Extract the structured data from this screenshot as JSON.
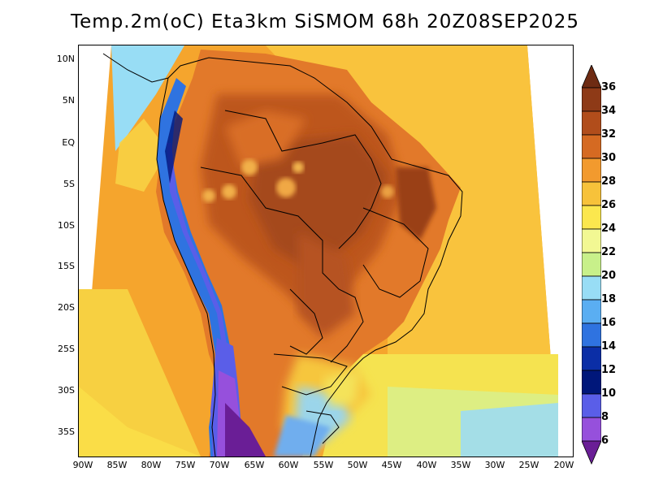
{
  "title": "Temp.2m(oC) Eta3km SiSMOM 68h 20Z08SEP2025",
  "map": {
    "lat_ticks": [
      "10N",
      "5N",
      "EQ",
      "5S",
      "10S",
      "15S",
      "20S",
      "25S",
      "30S",
      "35S"
    ],
    "lon_ticks": [
      "90W",
      "85W",
      "80W",
      "75W",
      "70W",
      "65W",
      "60W",
      "55W",
      "50W",
      "45W",
      "40W",
      "35W",
      "30W",
      "25W",
      "20W"
    ],
    "variable": "2 m air temperature",
    "units": "oC"
  },
  "colorbar": {
    "labels": [
      "36",
      "34",
      "32",
      "30",
      "28",
      "26",
      "24",
      "22",
      "20",
      "18",
      "16",
      "14",
      "12",
      "10",
      "8",
      "6"
    ],
    "colors": [
      "#6e2b13",
      "#8e3a17",
      "#b14d1b",
      "#d56a22",
      "#f29a2e",
      "#f7c23a",
      "#fbe74e",
      "#f2f893",
      "#c8f08a",
      "#98ddf5",
      "#5aaef2",
      "#2f73e0",
      "#0b2ea6",
      "#00177a",
      "#5a5ee8",
      "#9650dc",
      "#6a1e96"
    ]
  }
}
